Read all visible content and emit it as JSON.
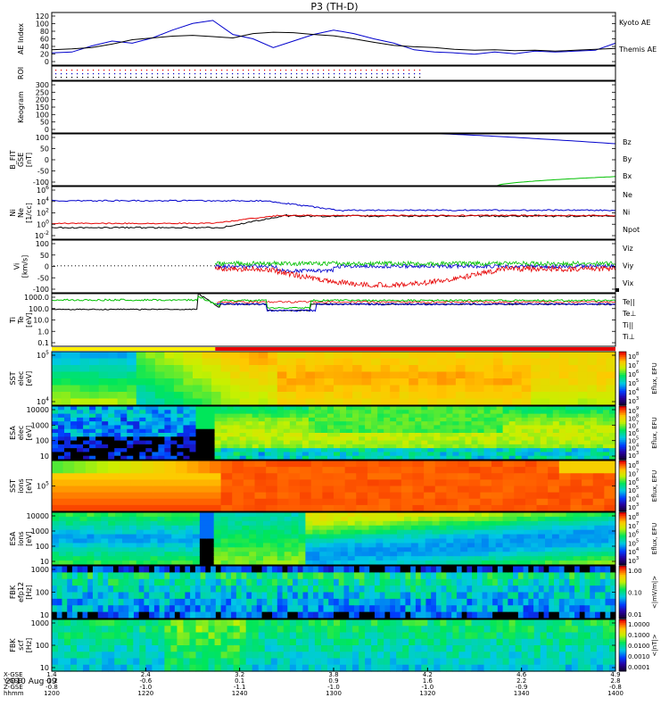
{
  "title": "P3 (TH-D)",
  "time": {
    "start_hhmm": "1200",
    "end_hhmm": "1400",
    "date_label": "2010 Aug 09"
  },
  "colors": {
    "red": "#e60000",
    "green": "#00c000",
    "blue": "#0000cc",
    "black": "#000000"
  },
  "chart_data": [
    {
      "type": "line",
      "id": "ae",
      "ylabel": "AE Index",
      "yticks": [
        "120",
        "100",
        "80",
        "60",
        "40",
        "20",
        "0"
      ],
      "ylim": [
        0,
        120
      ],
      "series": [
        {
          "name": "Kyoto AE",
          "color": "#0000cc",
          "values": [
            28,
            30,
            44,
            55,
            50,
            62,
            80,
            95,
            102,
            70,
            60,
            40,
            55,
            70,
            80,
            72,
            60,
            50,
            35,
            30,
            28,
            25,
            30,
            26,
            32,
            30,
            32,
            34,
            50
          ]
        },
        {
          "name": "Themis AE",
          "color": "#000000",
          "values": [
            35,
            37,
            40,
            48,
            58,
            62,
            66,
            68,
            65,
            62,
            72,
            75,
            74,
            70,
            67,
            60,
            52,
            45,
            42,
            40,
            36,
            34,
            35,
            33,
            34,
            32,
            34,
            36,
            38
          ]
        }
      ]
    },
    {
      "type": "scatter",
      "id": "roi",
      "ylabel": "ROI",
      "ylim": [
        0,
        3
      ],
      "rows": 3,
      "end_fraction": 0.66
    },
    {
      "type": "line",
      "id": "keogram",
      "ylabel": "Keogram",
      "yticks": [
        "300",
        "250",
        "200",
        "150",
        "100",
        "50",
        "0"
      ],
      "ylim": [
        0,
        300
      ]
    },
    {
      "type": "line",
      "id": "bfit",
      "ylabel": "B_FIT\nGSE\n[nT]",
      "yticks": [
        "100",
        "50",
        "0",
        "-50",
        "-100"
      ],
      "ylim": [
        -100,
        100
      ],
      "series": [
        {
          "name": "Bz",
          "color": "#e60000"
        },
        {
          "name": "By",
          "color": "#00c000"
        },
        {
          "name": "Bx",
          "color": "#0000cc"
        }
      ],
      "segments": [
        {
          "color": "#0000cc",
          "points": [
            [
              0.69,
              100
            ],
            [
              1.0,
              62
            ]
          ]
        },
        {
          "color": "#00c000",
          "points": [
            [
              0.79,
              -100
            ],
            [
              1.0,
              -65
            ]
          ]
        }
      ]
    },
    {
      "type": "line",
      "id": "ni",
      "ylabel": "Ni\nNe\n[1/cc]",
      "yticks": [
        "10^6",
        "10^4",
        "10^2",
        "10^0",
        "10^-2"
      ],
      "ylim": [
        -3,
        7
      ],
      "log": true,
      "series": [
        {
          "name": "Ne",
          "color": "#e60000"
        },
        {
          "name": "Ni",
          "color": "#000000"
        },
        {
          "name": "Npot",
          "color": "#0000cc"
        }
      ]
    },
    {
      "type": "line",
      "id": "vi",
      "ylabel": "Vi\n[km/s]",
      "yticks": [
        "100",
        "50",
        "0",
        "-50",
        "-100"
      ],
      "ylim": [
        -120,
        120
      ],
      "series": [
        {
          "name": "Viz",
          "color": "#e60000"
        },
        {
          "name": "Viy",
          "color": "#00c000"
        },
        {
          "name": "Vix",
          "color": "#0000cc"
        }
      ]
    },
    {
      "type": "line",
      "id": "ti",
      "ylabel": "Ti\nTe\n[eV]",
      "yticks": [
        "1000.0",
        "100.0",
        "10.0",
        "1.0",
        "0.1"
      ],
      "ylim": [
        -1.3,
        4
      ],
      "log": true,
      "series": [
        {
          "name": "Te||",
          "color": "#000000"
        },
        {
          "name": "Te⊥",
          "color": "#e60000"
        },
        {
          "name": "Ti||",
          "color": "#00c000"
        },
        {
          "name": "Ti⊥",
          "color": "#0000cc"
        }
      ]
    },
    {
      "type": "heatmap",
      "id": "sst_e",
      "ylabel": "SST\nelec\n[eV]",
      "yticks": [
        "10^5",
        "10^4"
      ],
      "zlabel": "Eflux, EFU",
      "zticks": [
        "10^8",
        "10^7",
        "10^6",
        "10^5",
        "10^4",
        "10^3"
      ]
    },
    {
      "type": "heatmap",
      "id": "esa_e",
      "ylabel": "ESA\nelec\n[eV]",
      "yticks": [
        "10000",
        "1000",
        "100",
        "10"
      ],
      "zlabel": "Eflux, EFU",
      "zticks": [
        "10^9",
        "10^8",
        "10^7",
        "10^6",
        "10^5",
        "10^4",
        "10^3"
      ]
    },
    {
      "type": "heatmap",
      "id": "sst_i",
      "ylabel": "SST\nions\n[eV]",
      "yticks": [
        "10^5"
      ],
      "zlabel": "Eflux, EFU",
      "zticks": [
        "10^8",
        "10^7",
        "10^6",
        "10^5",
        "10^4",
        "10^3"
      ]
    },
    {
      "type": "heatmap",
      "id": "esa_i",
      "ylabel": "ESA\nions\n[eV]",
      "yticks": [
        "10000",
        "1000",
        "100",
        "10"
      ],
      "zlabel": "Eflux, EFU",
      "zticks": [
        "10^8",
        "10^7",
        "10^6",
        "10^5",
        "10^4",
        "10^3"
      ]
    },
    {
      "type": "heatmap",
      "id": "fbk_e12",
      "ylabel": "FBK\nefp12\n[Hz]",
      "yticks": [
        "1000",
        "100",
        "10"
      ],
      "zlabel": "<|mV/m|>",
      "zticks": [
        "1.00",
        "0.10",
        "0.01"
      ]
    },
    {
      "type": "heatmap",
      "id": "fbk_scm",
      "ylabel": "FBK\nscf\n[Hz]",
      "yticks": [
        "1000",
        "100",
        "10"
      ],
      "zlabel": "<|nT|>",
      "zticks": [
        "1.0000",
        "0.1000",
        "0.0100",
        "0.0010",
        "0.0001"
      ]
    }
  ],
  "xaxis": {
    "row_labels": [
      "X-GSE",
      "Y-GSE",
      "Z-GSE",
      "hhmm"
    ],
    "ticks": [
      {
        "x": "1.4",
        "y": "-1.2",
        "z": "-0.8",
        "t": "1200"
      },
      {
        "x": "2.4",
        "y": "-0.6",
        "z": "-1.0",
        "t": "1220"
      },
      {
        "x": "3.2",
        "y": "0.1",
        "z": "-1.1",
        "t": "1240"
      },
      {
        "x": "3.8",
        "y": "0.9",
        "z": "-1.0",
        "t": "1300"
      },
      {
        "x": "4.2",
        "y": "1.6",
        "z": "-1.0",
        "t": "1320"
      },
      {
        "x": "4.6",
        "y": "2.2",
        "z": "-0.9",
        "t": "1340"
      },
      {
        "x": "4.9",
        "y": "2.8",
        "z": "-0.8",
        "t": "1400"
      }
    ]
  }
}
